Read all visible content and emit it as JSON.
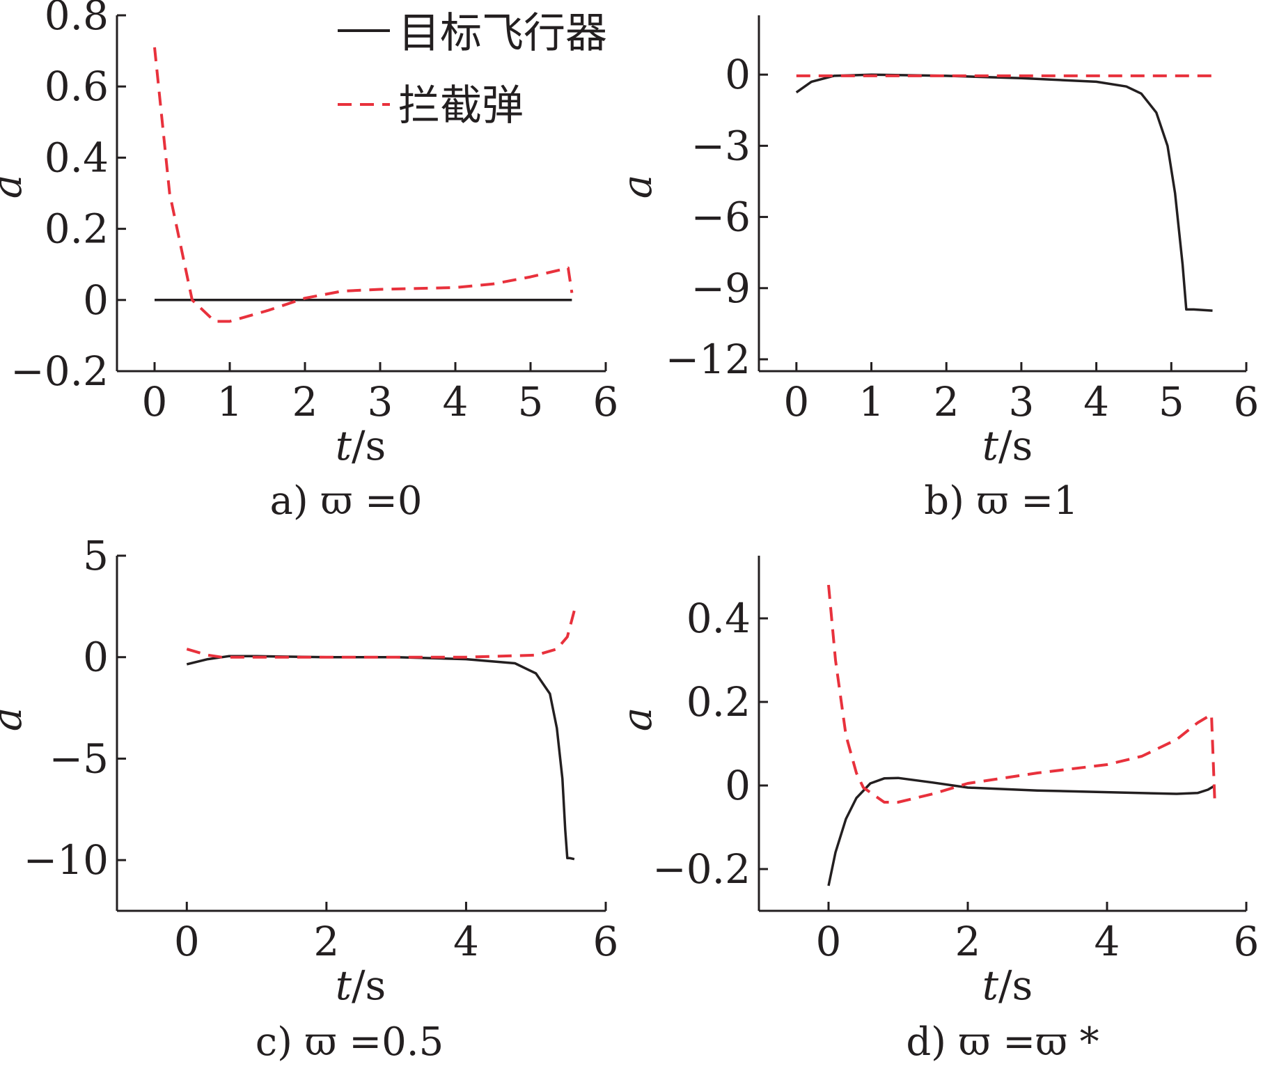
{
  "legend": {
    "target_label": "目标飞行器",
    "interceptor_label": "拦截弹"
  },
  "colors": {
    "target": "#231f20",
    "interceptor": "#e8313c"
  },
  "chart_data": [
    {
      "type": "line",
      "caption": "a) ϖ =0",
      "xlabel": "t/s",
      "ylabel": "a",
      "xlim": [
        -0.5,
        6
      ],
      "ylim": [
        -0.2,
        0.8
      ],
      "xticks": [
        0,
        1,
        2,
        3,
        4,
        5,
        6
      ],
      "yticks": [
        -0.2,
        0,
        0.2,
        0.4,
        0.6,
        0.8
      ],
      "ytick_labels": [
        "−0.2",
        "0",
        "0.2",
        "0.4",
        "0.6",
        "0.8"
      ],
      "series": [
        {
          "name": "目标飞行器",
          "style": "solid",
          "x": [
            0,
            1,
            2,
            3,
            4,
            5,
            5.55
          ],
          "y": [
            0,
            0,
            0,
            0,
            0,
            0,
            0
          ]
        },
        {
          "name": "拦截弹",
          "style": "dashed",
          "x": [
            0,
            0.2,
            0.5,
            0.8,
            1.0,
            1.5,
            2.0,
            2.5,
            3.0,
            4.0,
            4.5,
            5.0,
            5.5,
            5.55
          ],
          "y": [
            0.71,
            0.3,
            0.0,
            -0.06,
            -0.06,
            -0.03,
            0.005,
            0.025,
            0.03,
            0.035,
            0.045,
            0.065,
            0.09,
            0.02
          ]
        }
      ]
    },
    {
      "type": "line",
      "caption": "b) ϖ =1",
      "xlabel": "t/s",
      "ylabel": "a",
      "xlim": [
        -0.5,
        6
      ],
      "ylim": [
        -12.5,
        2.5
      ],
      "xticks": [
        0,
        1,
        2,
        3,
        4,
        5,
        6
      ],
      "yticks": [
        -12,
        -9,
        -6,
        -3,
        0
      ],
      "ytick_labels": [
        "−12",
        "−9",
        "−6",
        "−3",
        "0"
      ],
      "series": [
        {
          "name": "目标飞行器",
          "style": "solid",
          "x": [
            0,
            0.2,
            0.5,
            1,
            2,
            3,
            4,
            4.4,
            4.6,
            4.8,
            4.95,
            5.05,
            5.15,
            5.2,
            5.3,
            5.55
          ],
          "y": [
            -0.75,
            -0.3,
            -0.05,
            0,
            -0.05,
            -0.15,
            -0.3,
            -0.5,
            -0.8,
            -1.6,
            -3.0,
            -5.0,
            -8.0,
            -9.9,
            -9.9,
            -9.95
          ]
        },
        {
          "name": "拦截弹",
          "style": "dashed",
          "x": [
            0,
            0.5,
            1,
            2,
            3,
            4,
            5,
            5.55
          ],
          "y": [
            -0.05,
            -0.05,
            -0.05,
            -0.05,
            -0.05,
            -0.05,
            -0.05,
            -0.05
          ]
        }
      ]
    },
    {
      "type": "line",
      "caption": "c) ϖ =0.5",
      "xlabel": "t/s",
      "ylabel": "a",
      "xlim": [
        -1,
        6
      ],
      "ylim": [
        -12.5,
        5
      ],
      "xticks": [
        0,
        2,
        4,
        6
      ],
      "yticks": [
        -10,
        -5,
        0,
        5
      ],
      "ytick_labels": [
        "−10",
        "−5",
        "0",
        "5"
      ],
      "series": [
        {
          "name": "目标飞行器",
          "style": "solid",
          "x": [
            0,
            0.3,
            0.6,
            1,
            2,
            3,
            4,
            4.7,
            5.0,
            5.2,
            5.3,
            5.38,
            5.42,
            5.45,
            5.48,
            5.55
          ],
          "y": [
            -0.35,
            -0.1,
            0.05,
            0.05,
            0,
            0,
            -0.1,
            -0.3,
            -0.8,
            -1.8,
            -3.5,
            -6.0,
            -8.5,
            -9.9,
            -9.9,
            -9.95
          ]
        },
        {
          "name": "拦截弹",
          "style": "dashed",
          "x": [
            0,
            0.3,
            0.5,
            1,
            2,
            3,
            4,
            5,
            5.3,
            5.45,
            5.55
          ],
          "y": [
            0.4,
            0.1,
            0,
            0,
            0,
            0,
            0,
            0.1,
            0.4,
            1.0,
            2.3
          ]
        }
      ]
    },
    {
      "type": "line",
      "caption": "d) ϖ =ϖ *",
      "xlabel": "t/s",
      "ylabel": "a",
      "xlim": [
        -1,
        6
      ],
      "ylim": [
        -0.3,
        0.55
      ],
      "xticks": [
        0,
        2,
        4,
        6
      ],
      "yticks": [
        -0.2,
        0,
        0.2,
        0.4
      ],
      "ytick_labels": [
        "−0.2",
        "0",
        "0.2",
        "0.4"
      ],
      "series": [
        {
          "name": "目标飞行器",
          "style": "solid",
          "x": [
            0,
            0.1,
            0.25,
            0.4,
            0.6,
            0.8,
            1.0,
            1.5,
            2.0,
            3.0,
            4.0,
            5.0,
            5.3,
            5.45,
            5.55
          ],
          "y": [
            -0.24,
            -0.16,
            -0.08,
            -0.03,
            0.005,
            0.017,
            0.018,
            0.007,
            -0.005,
            -0.012,
            -0.016,
            -0.02,
            -0.018,
            -0.01,
            0.0
          ]
        },
        {
          "name": "拦截弹",
          "style": "dashed",
          "x": [
            0,
            0.1,
            0.25,
            0.4,
            0.5,
            0.8,
            1.0,
            1.5,
            2.0,
            3.0,
            4.0,
            4.5,
            5.0,
            5.3,
            5.5,
            5.55
          ],
          "y": [
            0.48,
            0.3,
            0.12,
            0.03,
            -0.005,
            -0.04,
            -0.04,
            -0.02,
            0.005,
            0.03,
            0.05,
            0.07,
            0.11,
            0.15,
            0.17,
            -0.05
          ]
        }
      ]
    }
  ]
}
